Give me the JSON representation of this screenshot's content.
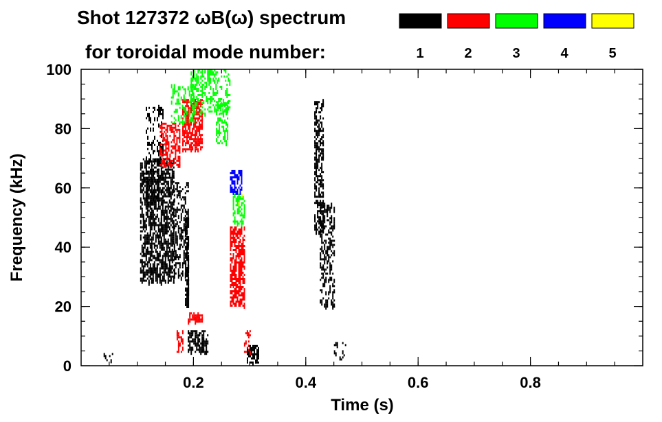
{
  "header": {
    "title_line1": "Shot 127372 ωB(ω) spectrum",
    "title_line2": "for toroidal mode number:"
  },
  "legend": [
    {
      "label": "1",
      "color": "#000000"
    },
    {
      "label": "2",
      "color": "#ff0000"
    },
    {
      "label": "3",
      "color": "#00ff00"
    },
    {
      "label": "4",
      "color": "#0000ff"
    },
    {
      "label": "5",
      "color": "#ffff00"
    }
  ],
  "chart_data": {
    "type": "heatmap",
    "title": "Shot 127372 ωB(ω) spectrum",
    "xlabel": "Time (s)",
    "ylabel": "Frequency (kHz)",
    "xlim": [
      0.0,
      1.0
    ],
    "ylim": [
      0,
      100
    ],
    "x_ticks": [
      {
        "value": 0.2,
        "label": "0.2"
      },
      {
        "value": 0.4,
        "label": "0.4"
      },
      {
        "value": 0.6,
        "label": "0.6"
      },
      {
        "value": 0.8,
        "label": "0.8"
      }
    ],
    "y_ticks": [
      {
        "value": 0,
        "label": "0"
      },
      {
        "value": 20,
        "label": "20"
      },
      {
        "value": 40,
        "label": "40"
      },
      {
        "value": 60,
        "label": "60"
      },
      {
        "value": 80,
        "label": "80"
      },
      {
        "value": 100,
        "label": "100"
      }
    ],
    "x_minor_step": 0.05,
    "y_minor_step": 5,
    "grid": false,
    "legend_position": "top-right",
    "regions": [
      {
        "mode": 1,
        "t": [
          0.105,
          0.165
        ],
        "f": [
          28,
          70
        ],
        "density": 0.55
      },
      {
        "mode": 1,
        "t": [
          0.115,
          0.145
        ],
        "f": [
          55,
          88
        ],
        "density": 0.25
      },
      {
        "mode": 1,
        "t": [
          0.165,
          0.19
        ],
        "f": [
          30,
          62
        ],
        "density": 0.35
      },
      {
        "mode": 1,
        "t": [
          0.185,
          0.19
        ],
        "f": [
          20,
          50
        ],
        "density": 0.6
      },
      {
        "mode": 1,
        "t": [
          0.19,
          0.225
        ],
        "f": [
          5,
          12
        ],
        "density": 0.6
      },
      {
        "mode": 1,
        "t": [
          0.295,
          0.315
        ],
        "f": [
          1,
          7
        ],
        "density": 0.6
      },
      {
        "mode": 1,
        "t": [
          0.415,
          0.43
        ],
        "f": [
          45,
          90
        ],
        "density": 0.45
      },
      {
        "mode": 1,
        "t": [
          0.425,
          0.45
        ],
        "f": [
          20,
          55
        ],
        "density": 0.35
      },
      {
        "mode": 1,
        "t": [
          0.04,
          0.055
        ],
        "f": [
          2,
          5
        ],
        "density": 0.25
      },
      {
        "mode": 1,
        "t": [
          0.45,
          0.47
        ],
        "f": [
          2,
          8
        ],
        "density": 0.15
      },
      {
        "mode": 2,
        "t": [
          0.14,
          0.175
        ],
        "f": [
          68,
          82
        ],
        "density": 0.45
      },
      {
        "mode": 2,
        "t": [
          0.18,
          0.215
        ],
        "f": [
          73,
          90
        ],
        "density": 0.6
      },
      {
        "mode": 2,
        "t": [
          0.265,
          0.29
        ],
        "f": [
          20,
          47
        ],
        "density": 0.6
      },
      {
        "mode": 2,
        "t": [
          0.19,
          0.215
        ],
        "f": [
          15,
          18
        ],
        "density": 0.5
      },
      {
        "mode": 2,
        "t": [
          0.17,
          0.18
        ],
        "f": [
          5,
          12
        ],
        "density": 0.35
      },
      {
        "mode": 2,
        "t": [
          0.29,
          0.3
        ],
        "f": [
          5,
          12
        ],
        "density": 0.35
      },
      {
        "mode": 3,
        "t": [
          0.195,
          0.265
        ],
        "f": [
          85,
          100
        ],
        "density": 0.35
      },
      {
        "mode": 3,
        "t": [
          0.24,
          0.26
        ],
        "f": [
          75,
          90
        ],
        "density": 0.35
      },
      {
        "mode": 3,
        "t": [
          0.27,
          0.29
        ],
        "f": [
          48,
          58
        ],
        "density": 0.5
      },
      {
        "mode": 3,
        "t": [
          0.16,
          0.2
        ],
        "f": [
          82,
          95
        ],
        "density": 0.25
      },
      {
        "mode": 4,
        "t": [
          0.265,
          0.285
        ],
        "f": [
          59,
          66
        ],
        "density": 0.55
      },
      {
        "mode": 5,
        "t": [
          0.28,
          0.29
        ],
        "f": [
          55,
          58
        ],
        "density": 0.15
      }
    ]
  }
}
